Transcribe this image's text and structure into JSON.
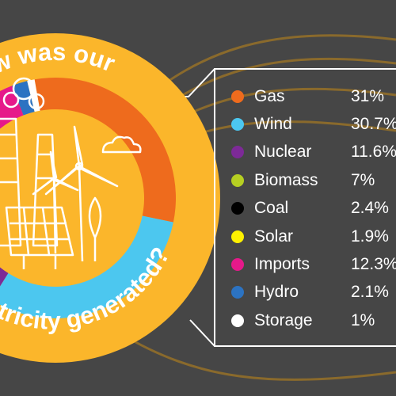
{
  "title_top": "How was our",
  "title_bottom": "electricity generated?",
  "colors": {
    "background": "#464646",
    "badge": "#fbb62b",
    "line": "#ffffff",
    "swirl": "#8a6a2c"
  },
  "chart_data": {
    "type": "pie",
    "legend_position": "right",
    "series": [
      {
        "label": "Gas",
        "value": "31%",
        "percent": 31,
        "color": "#ee6b1d"
      },
      {
        "label": "Wind",
        "value": "30.7%",
        "percent": 30.7,
        "color": "#4cc7ef"
      },
      {
        "label": "Nuclear",
        "value": "11.6%",
        "percent": 11.6,
        "color": "#7d2a97"
      },
      {
        "label": "Biomass",
        "value": "7%",
        "percent": 7,
        "color": "#b6cf22"
      },
      {
        "label": "Coal",
        "value": "2.4%",
        "percent": 2.4,
        "color": "#000000"
      },
      {
        "label": "Solar",
        "value": "1.9%",
        "percent": 1.9,
        "color": "#fff100"
      },
      {
        "label": "Imports",
        "value": "12.3%",
        "percent": 12.3,
        "color": "#e6198a"
      },
      {
        "label": "Hydro",
        "value": "2.1%",
        "percent": 2.1,
        "color": "#2c73c2"
      },
      {
        "label": "Storage",
        "value": "1%",
        "percent": 1,
        "color": "#ffffff"
      }
    ]
  }
}
